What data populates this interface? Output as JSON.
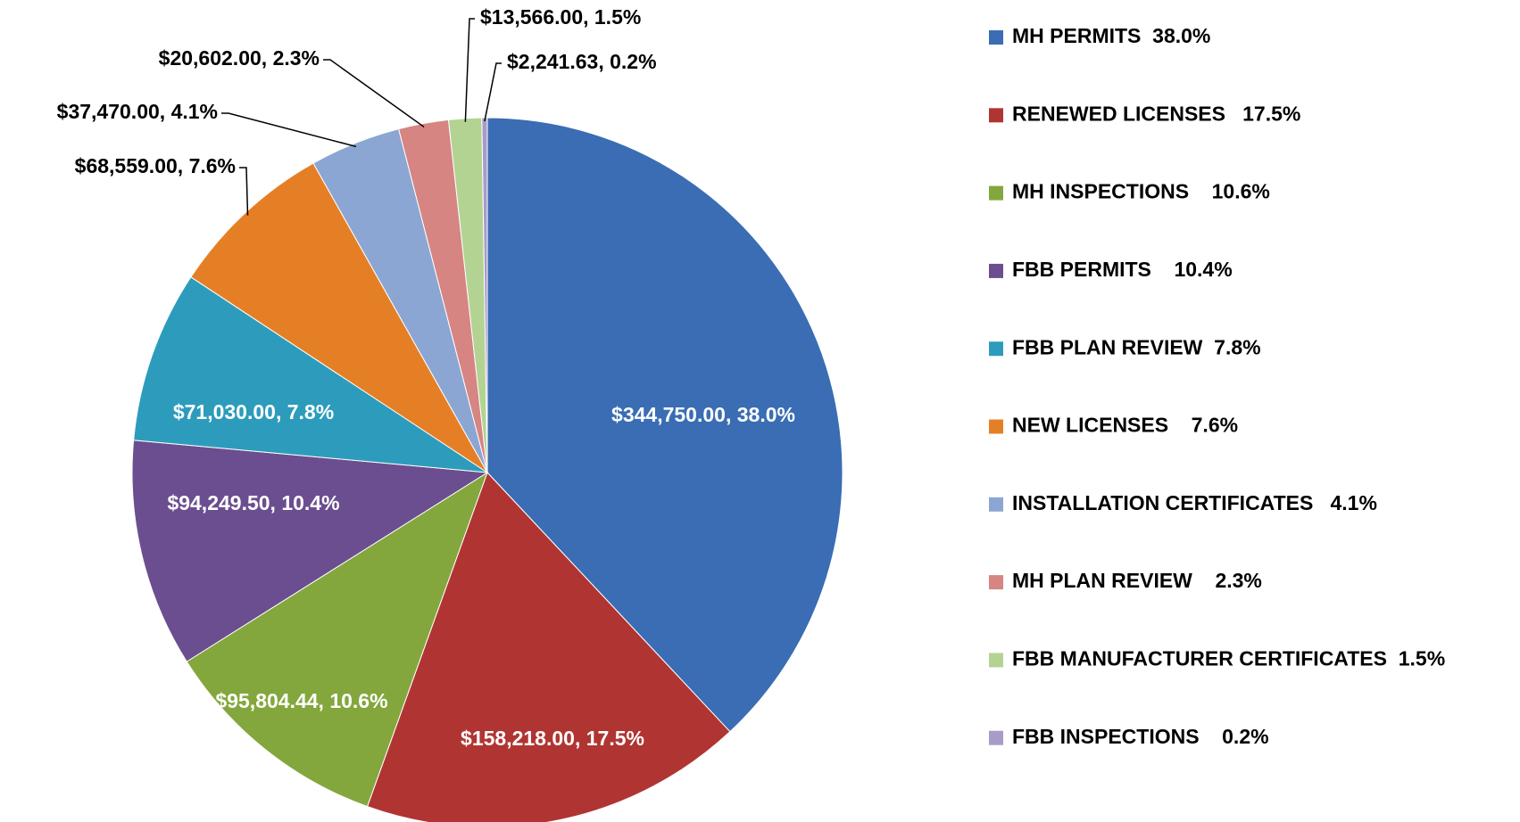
{
  "chart_data": {
    "type": "pie",
    "categories": [
      "MH PERMITS  38.0%",
      "RENEWED LICENSES   17.5%",
      "MH INSPECTIONS    10.6%",
      "FBB PERMITS    10.4%",
      "FBB PLAN REVIEW  7.8%",
      "NEW LICENSES    7.6%",
      "INSTALLATION CERTIFICATES   4.1%",
      "MH PLAN REVIEW    2.3%",
      "FBB MANUFACTURER CERTIFICATES  1.5%",
      "FBB INSPECTIONS    0.2%"
    ],
    "values": [
      344750,
      158218,
      95804.44,
      94249.5,
      71030,
      68559,
      37470,
      20602,
      13566,
      2241.63
    ],
    "value_labels": [
      "$344,750.00, 38.0%",
      "$158,218.00, 17.5%",
      "$95,804.44, 10.6%",
      "$94,249.50, 10.4%",
      "$71,030.00, 7.8%",
      "$68,559.00, 7.6%",
      "$37,470.00, 4.1%",
      "$20,602.00, 2.3%",
      "$13,566.00, 1.5%",
      "$2,241.63, 0.2%"
    ],
    "colors": [
      "#3a6db3",
      "#b03532",
      "#83a73c",
      "#6b4e8f",
      "#2d9cbc",
      "#e57f26",
      "#8ba6d3",
      "#d68583",
      "#b3d393",
      "#a99bc8"
    ],
    "legend": "right"
  }
}
